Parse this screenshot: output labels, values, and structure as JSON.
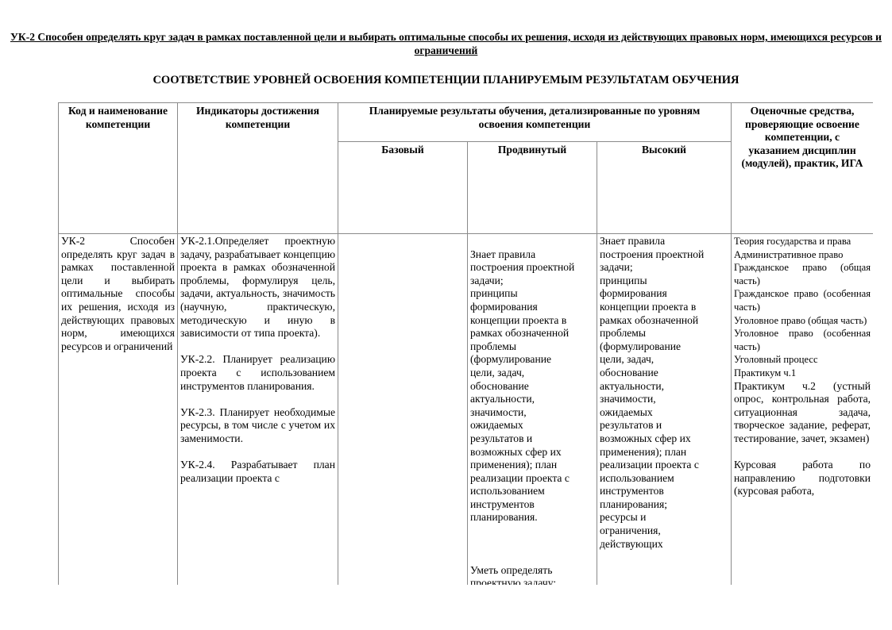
{
  "document": {
    "title": "УК-2 Способен определять круг задач в рамках поставленной цели и выбирать оптимальные способы их решения, исходя из действующих правовых норм, имеющихся ресурсов и ограничений",
    "subtitle": "СООТВЕТСТВИЕ УРОВНЕЙ ОСВОЕНИЯ КОМПЕТЕНЦИИ ПЛАНИРУЕМЫМ РЕЗУЛЬТАТАМ ОБУЧЕНИЯ"
  },
  "table": {
    "headers": {
      "code": "Код и наименование компетенции",
      "indicators": "Индикаторы достижения компетенции",
      "results": "Планируемые результаты обучения, детализированные по уровням освоения компетенции",
      "basic": "Базовый",
      "advanced": "Продвинутый",
      "high": "Высокий",
      "assessment": "Оценочные средства, проверяющие освоение компетенции, с указанием дисциплин (модулей), практик, ИГА"
    },
    "row": {
      "code": "УК-2 Способен определять круг задач в рамках поставленной цели и выбирать оптимальные способы их решения, исходя из действующих правовых норм, имеющихся ресурсов и ограничений",
      "indicators": [
        "УК-2.1.Определяет проектную задачу, разрабатывает концепцию проекта в рамках обозначенной проблемы, формулируя цель, задачи, актуальность, значимость (научную, практическую, методическую и иную в зависимости от типа проекта).",
        "УК-2.2. Планирует реализацию проекта с использованием инструментов планирования.",
        "УК-2.3. Планирует необходимые ресурсы, в том числе с учетом их заменимости.",
        "УК-2.4. Разрабатывает план реализации проекта с"
      ],
      "basic": "",
      "advanced": [
        "Знает правила\nпостроения проектной\nзадачи;\nпринципы\nформирования\nконцепции проекта в\nрамках обозначенной\nпроблемы\n(формулирование\nцели, задач,\nобоснование\nактуальности,\nзначимости,\nожидаемых\nрезультатов и\nвозможных сфер их\nприменения); план\nреализации проекта с\nиспользованием\nинструментов\nпланирования.",
        "Уметь  определять\nпроектную задачу;"
      ],
      "high": "Знает правила\nпостроения проектной\nзадачи;\nпринципы\nформирования\nконцепции проекта в\nрамках обозначенной\nпроблемы\n(формулирование\nцели, задач,\nобоснование\nактуальности,\nзначимости,\nожидаемых\nрезультатов и\nвозможных сфер их\nприменения); план\nреализации проекта с\nиспользованием\nинструментов\nпланирования;\nресурсы и\nограничения,\nдействующих",
      "assessment": {
        "disciplines": [
          "Теория государства и права",
          "Административное право",
          "Гражданское право (общая часть)",
          "Гражданское право (особенная часть)",
          "Уголовное право (общая часть)",
          "Уголовное право (особенная часть)",
          "Уголовный процесс",
          "Практикум ч.1"
        ],
        "practicum2": "Практикум ч.2 (устный опрос, контрольная работа, ситуационная задача, творческое задание, реферат, тестирование, зачет, экзамен)",
        "coursework": "Курсовая работа по направлению подготовки (курсовая работа,"
      }
    }
  }
}
